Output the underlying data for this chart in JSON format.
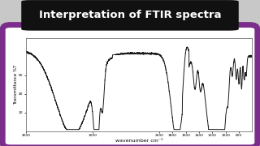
{
  "title": "Interpretation of FTIR spectra",
  "title_bg": "#111111",
  "title_color": "#ffffff",
  "title_fontsize": 9.5,
  "xlabel": "wavenumber cm⁻¹",
  "ylabel": "Transmittance %T",
  "xlabel_fontsize": 4.5,
  "ylabel_fontsize": 4.0,
  "xlim": [
    4000,
    600
  ],
  "ylim": [
    0,
    100
  ],
  "xticks": [
    4000,
    3000,
    2000,
    1800,
    1600,
    1400,
    1200,
    1000,
    800
  ],
  "plot_bg": "#ffffff",
  "outer_bg": "#c8c8c8",
  "border_color": "#7b2d8b",
  "line_color": "#1a1a1a",
  "line_width": 0.7,
  "fig_bg": "#b0b0b0"
}
